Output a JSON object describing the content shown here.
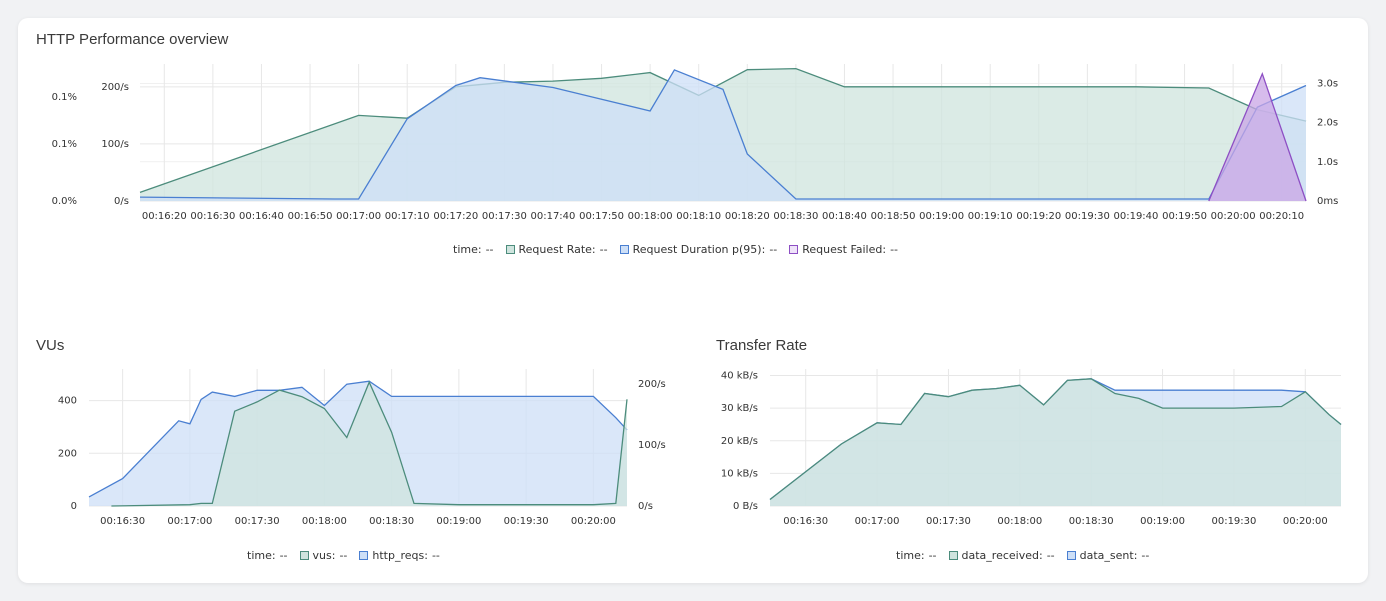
{
  "colors": {
    "green_line": "#4c8c7c",
    "green_fill": "#cfe4de",
    "blue_line": "#4a7fd1",
    "blue_fill": "#cddff7",
    "purple_line": "#8d4fc4",
    "purple_fill": "#c9a6e6",
    "grid": "#e7e7e7"
  },
  "panels": {
    "http": {
      "title": "HTTP Performance overview",
      "legend": {
        "time_label": "time:",
        "time_value": "--",
        "items": [
          {
            "label": "Request Rate:",
            "value": "--",
            "color": "#4c8c7c"
          },
          {
            "label": "Request Duration p(95):",
            "value": "--",
            "color": "#4a7fd1"
          },
          {
            "label": "Request Failed:",
            "value": "--",
            "color": "#8d4fc4"
          }
        ]
      }
    },
    "vus": {
      "title": "VUs",
      "legend": {
        "time_label": "time:",
        "time_value": "--",
        "items": [
          {
            "label": "vus:",
            "value": "--",
            "color": "#4c8c7c"
          },
          {
            "label": "http_reqs:",
            "value": "--",
            "color": "#4a7fd1"
          }
        ]
      }
    },
    "transfer": {
      "title": "Transfer Rate",
      "legend": {
        "time_label": "time:",
        "time_value": "--",
        "items": [
          {
            "label": "data_received:",
            "value": "--",
            "color": "#4c8c7c"
          },
          {
            "label": "data_sent:",
            "value": "--",
            "color": "#4a7fd1"
          }
        ]
      }
    }
  },
  "chart_data": [
    {
      "id": "http",
      "type": "area",
      "title": "HTTP Performance overview",
      "x": [
        "00:16:15",
        "00:17:00",
        "00:17:10",
        "00:17:20",
        "00:17:30",
        "00:17:40",
        "00:17:50",
        "00:18:00",
        "00:18:10",
        "00:18:20",
        "00:18:30",
        "00:18:40",
        "00:19:00",
        "00:19:20",
        "00:19:40",
        "00:19:55",
        "00:20:05",
        "00:20:15"
      ],
      "xticks": [
        "00:16:20",
        "00:16:30",
        "00:16:40",
        "00:16:50",
        "00:17:00",
        "00:17:10",
        "00:17:20",
        "00:17:30",
        "00:17:40",
        "00:17:50",
        "00:18:00",
        "00:18:10",
        "00:18:20",
        "00:18:30",
        "00:18:40",
        "00:18:50",
        "00:19:00",
        "00:19:10",
        "00:19:20",
        "00:19:30",
        "00:19:40",
        "00:19:50",
        "00:20:00",
        "00:20:10"
      ],
      "xlim": [
        "00:16:15",
        "00:20:15"
      ],
      "grid": true,
      "legend_position": "bottom",
      "y_left_outer": {
        "ticks": [
          "0.0%",
          "0.1%",
          "0.1%"
        ]
      },
      "y_left": {
        "ticks": [
          "0/s",
          "100/s",
          "200/s"
        ],
        "ylim": [
          0,
          240
        ]
      },
      "y_right": {
        "ticks": [
          "0ms",
          "1.0s",
          "2.0s",
          "3.0s"
        ],
        "ylim": [
          0,
          3.5
        ]
      },
      "series": [
        {
          "name": "Request Rate",
          "axis": "left",
          "color": "#4c8c7c",
          "fill": "#cfe4de",
          "x": [
            "00:16:15",
            "00:17:00",
            "00:17:10",
            "00:17:20",
            "00:17:30",
            "00:17:40",
            "00:17:50",
            "00:18:00",
            "00:18:10",
            "00:18:20",
            "00:18:30",
            "00:18:40",
            "00:19:00",
            "00:19:20",
            "00:19:40",
            "00:19:55",
            "00:20:05",
            "00:20:15"
          ],
          "values": [
            15,
            150,
            145,
            200,
            208,
            210,
            215,
            225,
            185,
            230,
            232,
            200,
            200,
            200,
            200,
            198,
            160,
            140
          ]
        },
        {
          "name": "Request Duration p(95)",
          "axis": "right",
          "color": "#4a7fd1",
          "fill": "#cddff7",
          "x": [
            "00:16:15",
            "00:16:55",
            "00:17:00",
            "00:17:10",
            "00:17:20",
            "00:17:25",
            "00:17:40",
            "00:17:50",
            "00:18:00",
            "00:18:05",
            "00:18:15",
            "00:18:20",
            "00:18:30",
            "00:18:40",
            "00:19:55",
            "00:20:05",
            "00:20:15"
          ],
          "values": [
            0.1,
            0.05,
            0.05,
            2.1,
            2.95,
            3.15,
            2.9,
            2.6,
            2.3,
            3.35,
            2.85,
            1.2,
            0.05,
            0.05,
            0.05,
            2.4,
            2.95
          ]
        },
        {
          "name": "Request Failed",
          "axis": "left_outer",
          "color": "#8d4fc4",
          "fill": "#c9a6e6",
          "x": [
            "00:19:55",
            "00:20:06",
            "00:20:15"
          ],
          "values": [
            0,
            0.13,
            0
          ]
        }
      ]
    },
    {
      "id": "vus",
      "type": "area",
      "title": "VUs",
      "x": [
        "00:16:15",
        "00:17:00",
        "00:18:00",
        "00:19:00",
        "00:20:00"
      ],
      "xticks": [
        "00:16:30",
        "00:17:00",
        "00:17:30",
        "00:18:00",
        "00:18:30",
        "00:19:00",
        "00:19:30",
        "00:20:00"
      ],
      "xlim": [
        "00:16:15",
        "00:20:15"
      ],
      "grid": true,
      "legend_position": "bottom",
      "y_left": {
        "ticks": [
          "0",
          "200",
          "400"
        ],
        "ylim": [
          0,
          520
        ]
      },
      "y_right": {
        "ticks": [
          "0/s",
          "100/s",
          "200/s"
        ],
        "ylim": [
          0,
          225
        ]
      },
      "series": [
        {
          "name": "vus",
          "axis": "left",
          "color": "#4c8c7c",
          "fill": "#cfe4de",
          "x": [
            "00:16:25",
            "00:17:00",
            "00:17:05",
            "00:17:10",
            "00:17:20",
            "00:17:30",
            "00:17:40",
            "00:17:50",
            "00:18:00",
            "00:18:10",
            "00:18:20",
            "00:18:30",
            "00:18:40",
            "00:19:00",
            "00:19:30",
            "00:20:00",
            "00:20:10",
            "00:20:15"
          ],
          "values": [
            0,
            5,
            10,
            10,
            360,
            395,
            440,
            415,
            370,
            260,
            470,
            280,
            10,
            5,
            5,
            5,
            10,
            405
          ]
        },
        {
          "name": "http_reqs",
          "axis": "right",
          "color": "#4a7fd1",
          "fill": "#cddff7",
          "x": [
            "00:16:15",
            "00:16:30",
            "00:16:55",
            "00:17:00",
            "00:17:05",
            "00:17:10",
            "00:17:20",
            "00:17:30",
            "00:17:40",
            "00:17:50",
            "00:18:00",
            "00:18:10",
            "00:18:20",
            "00:18:30",
            "00:18:40",
            "00:19:00",
            "00:19:30",
            "00:19:50",
            "00:20:00",
            "00:20:10",
            "00:20:15"
          ],
          "values": [
            15,
            45,
            140,
            135,
            175,
            187,
            180,
            190,
            190,
            195,
            165,
            200,
            205,
            180,
            180,
            180,
            180,
            180,
            180,
            145,
            125
          ]
        }
      ]
    },
    {
      "id": "transfer",
      "type": "area",
      "title": "Transfer Rate",
      "xticks": [
        "00:16:30",
        "00:17:00",
        "00:17:30",
        "00:18:00",
        "00:18:30",
        "00:19:00",
        "00:19:30",
        "00:20:00"
      ],
      "xlim": [
        "00:16:15",
        "00:20:15"
      ],
      "grid": true,
      "legend_position": "bottom",
      "y_left": {
        "ticks": [
          "0 B/s",
          "10 kB/s",
          "20 kB/s",
          "30 kB/s",
          "40 kB/s"
        ],
        "ylim": [
          0,
          42
        ]
      },
      "series": [
        {
          "name": "data_received",
          "axis": "left",
          "color": "#4c8c7c",
          "fill": "#cfe4de",
          "x": [
            "00:16:15",
            "00:16:45",
            "00:17:00",
            "00:17:10",
            "00:17:20",
            "00:17:30",
            "00:17:40",
            "00:17:50",
            "00:18:00",
            "00:18:10",
            "00:18:20",
            "00:18:30",
            "00:18:40",
            "00:18:50",
            "00:19:00",
            "00:19:30",
            "00:19:50",
            "00:20:00",
            "00:20:10",
            "00:20:15"
          ],
          "values": [
            2,
            19,
            25.5,
            25,
            34.5,
            33.5,
            35.5,
            36,
            37,
            31,
            38.5,
            39,
            34.5,
            33,
            30,
            30,
            30.5,
            35,
            28,
            25
          ]
        },
        {
          "name": "data_sent",
          "axis": "left",
          "color": "#4a7fd1",
          "fill": "#cddff7",
          "x": [
            "00:16:15",
            "00:16:45",
            "00:17:00",
            "00:17:10",
            "00:17:20",
            "00:17:30",
            "00:17:40",
            "00:17:50",
            "00:18:00",
            "00:18:10",
            "00:18:20",
            "00:18:30",
            "00:18:40",
            "00:19:00",
            "00:19:30",
            "00:19:50",
            "00:20:00",
            "00:20:10",
            "00:20:15"
          ],
          "values": [
            2,
            19,
            25.5,
            25,
            34.5,
            33.5,
            35.5,
            36,
            37,
            31,
            38.5,
            39,
            35.5,
            35.5,
            35.5,
            35.5,
            35,
            28,
            25
          ]
        }
      ]
    }
  ]
}
